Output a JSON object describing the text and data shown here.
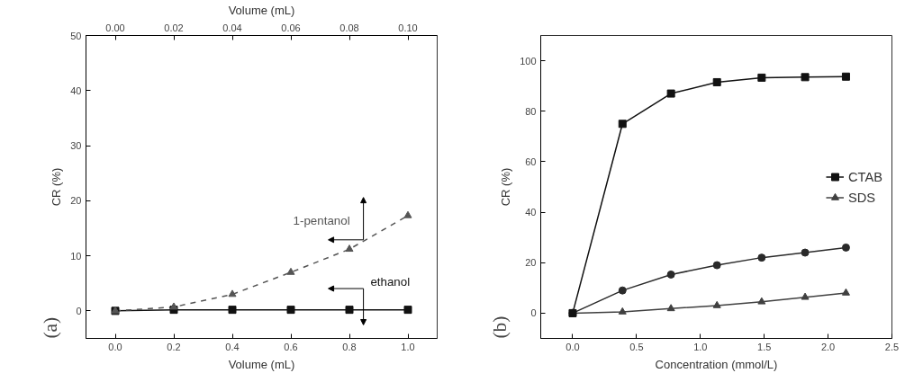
{
  "chart_data": [
    {
      "type": "line",
      "annotations": [
        "(a)"
      ],
      "xlabel": "Volume (mL)",
      "x2label": "Volume (mL)",
      "ylabel": "CR (%)",
      "xlim": [
        -0.1,
        1.1
      ],
      "xticks": [
        {
          "value": 0,
          "label": "0.0"
        },
        0.2,
        0.4,
        0.6,
        0.8,
        {
          "value": 1,
          "label": "1.0"
        }
      ],
      "x2lim": [
        -0.01,
        0.11
      ],
      "x2ticks": [
        {
          "value": 0,
          "label": "0.00"
        },
        {
          "value": 0.02,
          "label": "0.02"
        },
        {
          "value": 0.04,
          "label": "0.04"
        },
        {
          "value": 0.06,
          "label": "0.06"
        },
        {
          "value": 0.08,
          "label": "0.08"
        },
        {
          "value": 0.1,
          "label": "0.10"
        }
      ],
      "ylim": [
        -5,
        50
      ],
      "yticks": [
        0,
        10,
        20,
        30,
        40,
        50
      ],
      "grid": false,
      "legend": false,
      "series": [
        {
          "name": "1-pentanol",
          "color": "#555555",
          "marker": "triangle",
          "line_style": "dashed",
          "axis": "x2",
          "x": [
            0,
            0.02,
            0.04,
            0.06,
            0.08,
            0.1
          ],
          "values": [
            0,
            0.7,
            3.0,
            7.0,
            11.2,
            17.3
          ]
        },
        {
          "name": "ethanol",
          "color": "#111111",
          "marker": "square",
          "line_style": "solid",
          "x": [
            0,
            0.2,
            0.4,
            0.6,
            0.8,
            1.0
          ],
          "values": [
            0,
            0.2,
            0.2,
            0.2,
            0.2,
            0.2
          ]
        }
      ]
    },
    {
      "type": "line",
      "annotations": [
        "(b)"
      ],
      "xlabel": "Concentration (mmol/L)",
      "ylabel": "CR (%)",
      "xlim": [
        -0.25,
        2.5
      ],
      "xticks": [
        {
          "value": 0,
          "label": "0.0"
        },
        0.5,
        {
          "value": 1,
          "label": "1.0"
        },
        1.5,
        {
          "value": 2,
          "label": "2.0"
        },
        2.5
      ],
      "ylim": [
        -10,
        110
      ],
      "yticks": [
        0,
        20,
        40,
        60,
        80,
        100
      ],
      "grid": false,
      "legend": "right",
      "x": [
        0,
        0.39,
        0.77,
        1.13,
        1.48,
        1.82,
        2.14
      ],
      "series": [
        {
          "name": "CTAB",
          "color": "#111111",
          "marker": "square",
          "values": [
            0,
            75,
            87,
            91.5,
            93.3,
            93.5,
            93.7
          ]
        },
        {
          "color": "#2a2a2a",
          "marker": "circle",
          "values": [
            0,
            9,
            15.3,
            19,
            22,
            24,
            26
          ]
        },
        {
          "name": "SDS",
          "color": "#404040",
          "marker": "triangle",
          "values": [
            0,
            0.5,
            1.8,
            3,
            4.5,
            6.3,
            8
          ]
        }
      ]
    }
  ]
}
